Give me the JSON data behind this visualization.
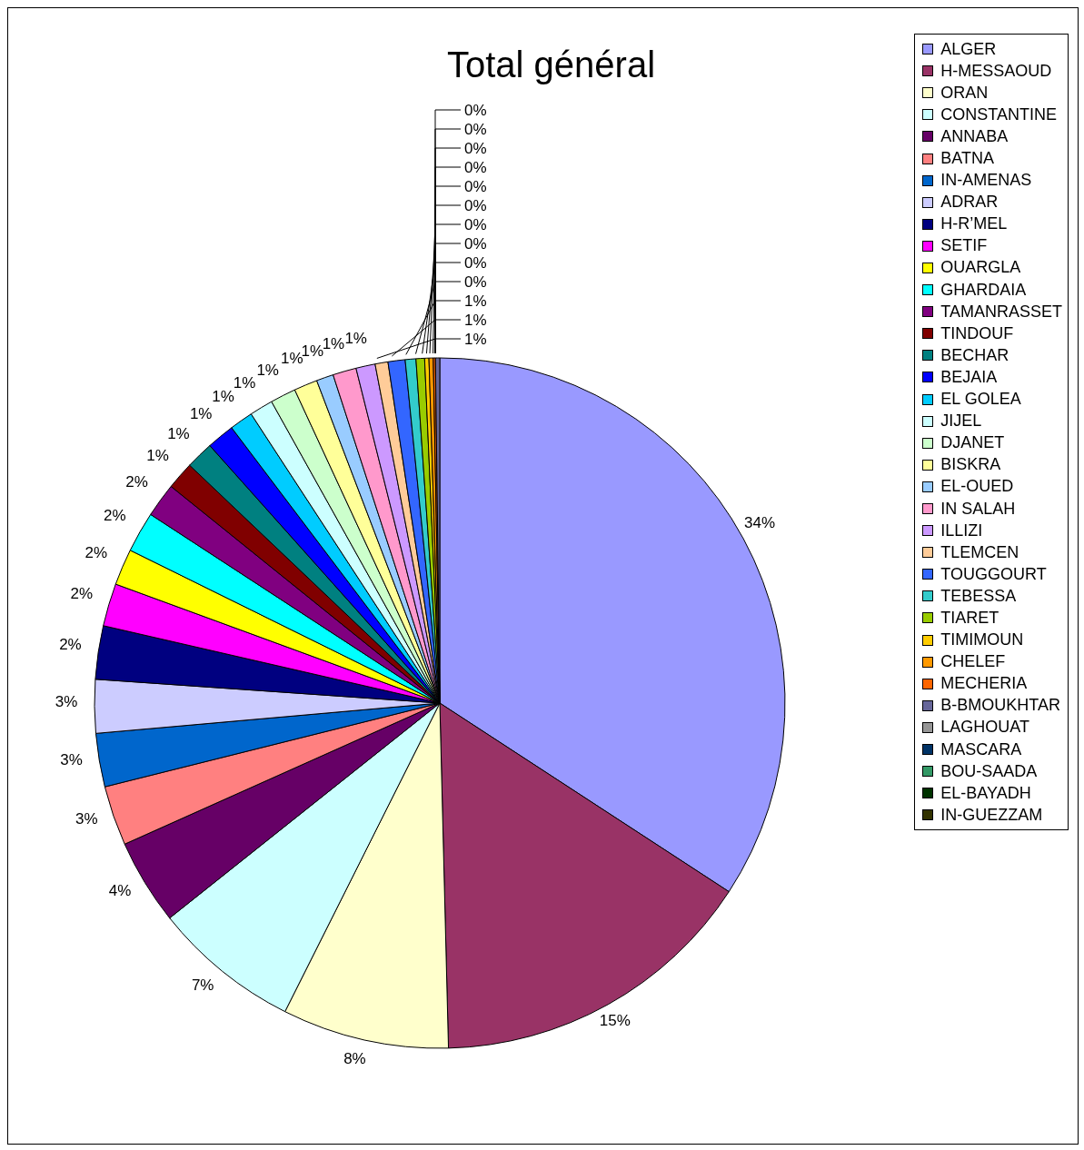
{
  "chart_data": {
    "type": "pie",
    "title": "Total général",
    "categories": [
      "ALGER",
      "H-MESSAOUD",
      "ORAN",
      "CONSTANTINE",
      "ANNABA",
      "BATNA",
      "IN-AMENAS",
      "ADRAR",
      "H-R’MEL",
      "SETIF",
      "OUARGLA",
      "GHARDAIA",
      "TAMANRASSET",
      "TINDOUF",
      "BECHAR",
      "BEJAIA",
      "EL GOLEA",
      "JIJEL",
      "DJANET",
      "BISKRA",
      "EL-OUED",
      "IN SALAH",
      "ILLIZI",
      "TLEMCEN",
      "TOUGGOURT",
      "TEBESSA",
      "TIARET",
      "TIMIMOUN",
      "CHELEF",
      "MECHERIA",
      "B-BMOUKHTAR",
      "LAGHOUAT",
      "MASCARA",
      "BOU-SAADA",
      "EL-BAYADH",
      "IN-GUEZZAM"
    ],
    "values": [
      34.2,
      15.4,
      7.8,
      6.9,
      4.0,
      2.8,
      2.5,
      2.5,
      2.5,
      2.0,
      1.7,
      1.9,
      1.6,
      1.3,
      1.3,
      1.3,
      1.1,
      1.1,
      1.2,
      1.1,
      0.8,
      1.1,
      0.9,
      0.6,
      0.8,
      0.5,
      0.4,
      0.2,
      0.2,
      0.1,
      0.2,
      0,
      0,
      0,
      0,
      0
    ],
    "value_labels": [
      "34%",
      "15%",
      "8%",
      "7%",
      "4%",
      "3%",
      "3%",
      "3%",
      "2%",
      "2%",
      "2%",
      "2%",
      "2%",
      "1%",
      "1%",
      "1%",
      "1%",
      "1%",
      "1%",
      "1%",
      "1%",
      "1%",
      "1%",
      "1%",
      "1%",
      "1%",
      "0%",
      "0%",
      "0%",
      "0%",
      "0%",
      "0%",
      "0%",
      "0%",
      "0%",
      "0%"
    ],
    "colors": [
      "#9999ff",
      "#993366",
      "#ffffcc",
      "#ccffff",
      "#660066",
      "#ff8080",
      "#0066cc",
      "#ccccff",
      "#000080",
      "#ff00ff",
      "#ffff00",
      "#00ffff",
      "#800080",
      "#800000",
      "#008080",
      "#0000ff",
      "#00ccff",
      "#ccffff",
      "#ccffcc",
      "#ffff99",
      "#99ccff",
      "#ff99cc",
      "#cc99ff",
      "#ffcc99",
      "#3366ff",
      "#33cccc",
      "#99cc00",
      "#ffcc00",
      "#ff9900",
      "#ff6600",
      "#666699",
      "#969696",
      "#003366",
      "#339966",
      "#003300",
      "#333300"
    ],
    "legend": "top right"
  }
}
